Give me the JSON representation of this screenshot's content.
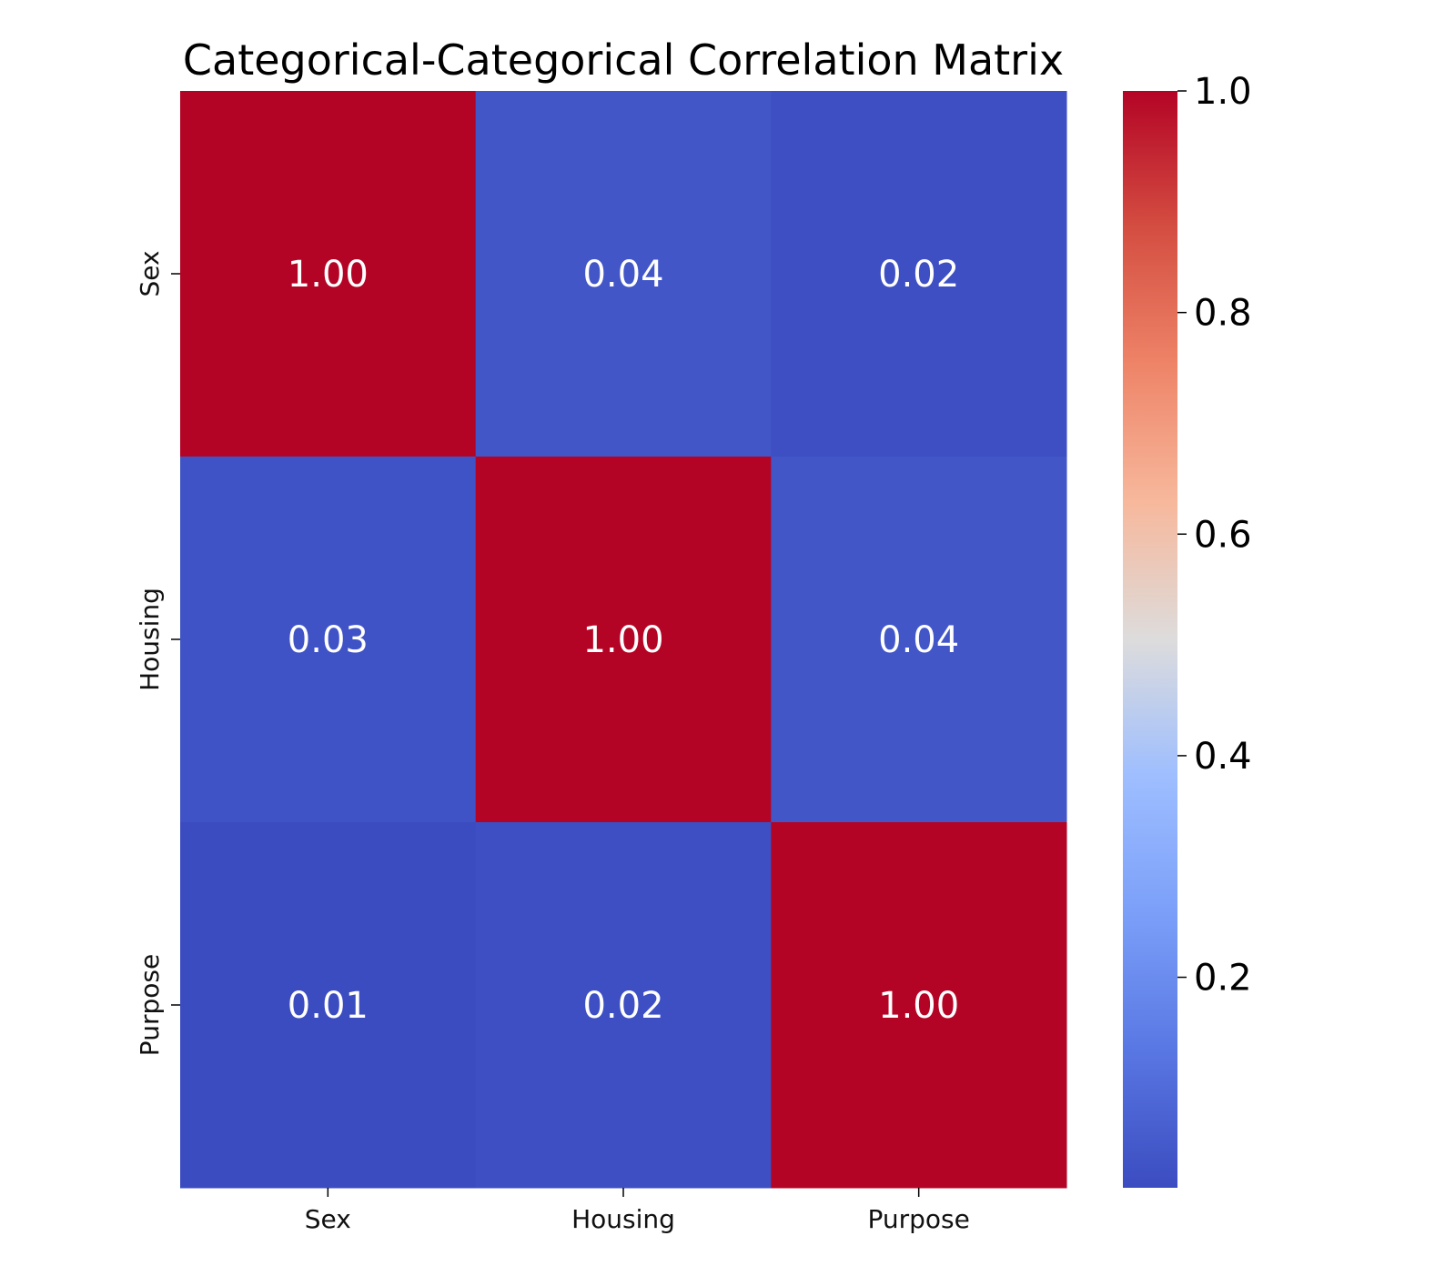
{
  "chart_data": {
    "type": "heatmap",
    "title": "Categorical-Categorical Correlation Matrix",
    "x_categories": [
      "Sex",
      "Housing",
      "Purpose"
    ],
    "y_categories": [
      "Sex",
      "Housing",
      "Purpose"
    ],
    "values": [
      [
        1.0,
        0.04,
        0.02
      ],
      [
        0.03,
        1.0,
        0.04
      ],
      [
        0.01,
        0.02,
        1.0
      ]
    ],
    "cell_labels": [
      [
        "1.00",
        "0.04",
        "0.02"
      ],
      [
        "0.03",
        "1.00",
        "0.04"
      ],
      [
        "0.01",
        "0.02",
        "1.00"
      ]
    ],
    "colormap": "coolwarm",
    "colorbar": {
      "range": [
        0.01,
        1.0
      ],
      "ticks": [
        0.2,
        0.4,
        0.6,
        0.8,
        1.0
      ],
      "tick_labels": [
        "0.2",
        "0.4",
        "0.6",
        "0.8",
        "1.0"
      ]
    },
    "xlabel": "",
    "ylabel": ""
  }
}
